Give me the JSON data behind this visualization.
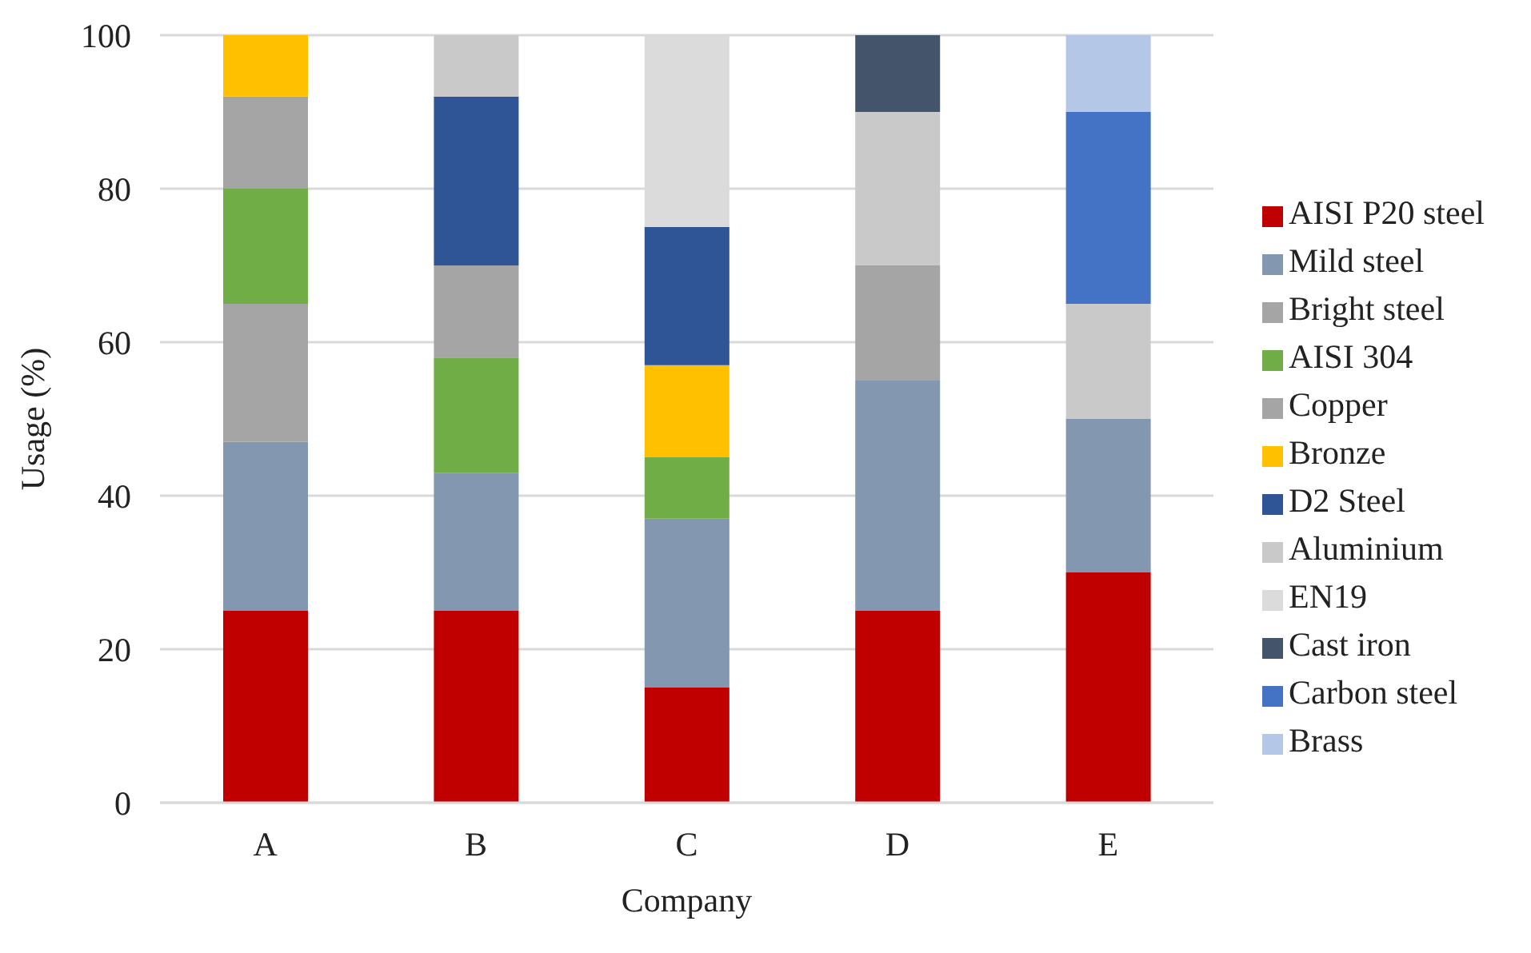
{
  "chart_data": {
    "type": "bar",
    "stacked": true,
    "xlabel": "Company",
    "ylabel": "Usage (%)",
    "categories": [
      "A",
      "B",
      "C",
      "D",
      "E"
    ],
    "series": [
      {
        "name": "AISI P20 steel",
        "color": "#c00000",
        "values": [
          25,
          25,
          15,
          25,
          30
        ]
      },
      {
        "name": "Mild steel",
        "color": "#8497b0",
        "values": [
          22,
          18,
          22,
          30,
          20
        ]
      },
      {
        "name": "Bright steel",
        "color": "#a5a5a5",
        "values": [
          18,
          null,
          null,
          15,
          null
        ]
      },
      {
        "name": "AISI 304",
        "color": "#70ad47",
        "values": [
          15,
          15,
          8,
          null,
          null
        ]
      },
      {
        "name": "Copper",
        "color": "#a5a5a5",
        "values": [
          12,
          12,
          null,
          null,
          null
        ]
      },
      {
        "name": "Bronze",
        "color": "#ffc000",
        "values": [
          8,
          null,
          12,
          null,
          null
        ]
      },
      {
        "name": "D2 Steel",
        "color": "#2f5597",
        "values": [
          null,
          22,
          18,
          null,
          null
        ]
      },
      {
        "name": "Aluminium",
        "color": "#c9c9c9",
        "values": [
          null,
          8,
          null,
          20,
          15
        ]
      },
      {
        "name": "EN19",
        "color": "#dbdbdb",
        "values": [
          null,
          null,
          25,
          null,
          null
        ]
      },
      {
        "name": "Cast iron",
        "color": "#44546a",
        "values": [
          null,
          null,
          null,
          10,
          null
        ]
      },
      {
        "name": "Carbon steel",
        "color": "#4472c4",
        "values": [
          null,
          null,
          null,
          null,
          25
        ]
      },
      {
        "name": "Brass",
        "color": "#b4c7e7",
        "values": [
          null,
          null,
          null,
          null,
          10
        ]
      }
    ],
    "ylim": [
      0,
      100
    ],
    "yticks": [
      0,
      20,
      40,
      60,
      80,
      100
    ],
    "grid": "y",
    "legend": "right"
  }
}
